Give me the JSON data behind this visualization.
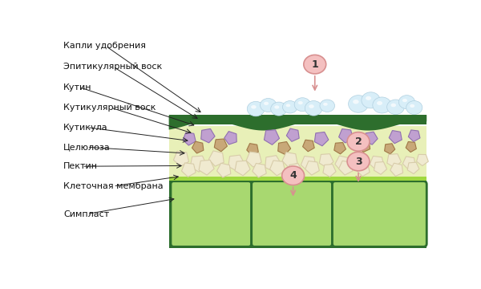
{
  "labels": [
    "Капли удобрения",
    "Эпитикулярный воск",
    "Кутин",
    "Кутикулярный воск",
    "Кутикула",
    "Целюлоза",
    "Пектин",
    "Клеточная мембрана",
    "Симпласт"
  ],
  "bg_color": "#ffffff",
  "dark_green": "#2d6e2d",
  "mid_green": "#4a9a3a",
  "light_green_cell": "#90c860",
  "cell_inner": "#a8d870",
  "cuticle_fill": "#e8f0b8",
  "membrane_line": "#90c840",
  "wax_color": "#d8eef8",
  "pink_fill": "#f4c0c0",
  "pink_edge": "#d89090",
  "font_size_label": 8.0,
  "font_size_number": 9
}
